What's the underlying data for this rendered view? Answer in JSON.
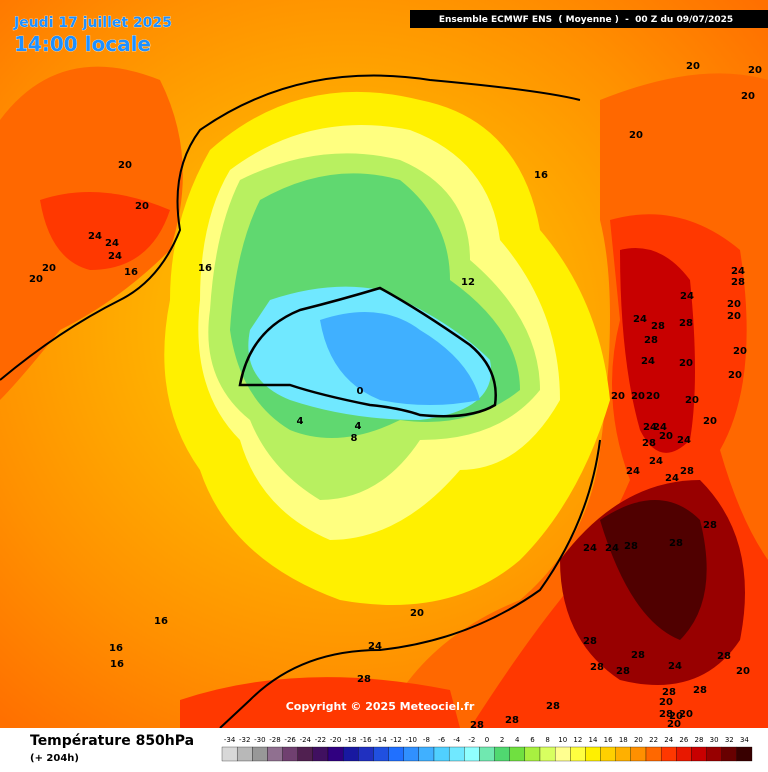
{
  "header": {
    "date": "Jeudi 17 juillet 2025",
    "time": "14:00 locale",
    "model": "Ensemble ECMWF ENS  ( Moyenne )  -  00 Z du 09/07/2025"
  },
  "copyright": "Copyright © 2025 Meteociel.fr",
  "footer": {
    "title": "Température 850hPa",
    "lead": "(+ 204h)"
  },
  "colorbar": {
    "ticks": [
      -34,
      -32,
      -30,
      -28,
      -26,
      -24,
      -22,
      -20,
      -18,
      -16,
      -14,
      -12,
      -10,
      -8,
      -6,
      -4,
      -2,
      0,
      2,
      4,
      6,
      8,
      10,
      12,
      14,
      16,
      18,
      20,
      22,
      24,
      26,
      28,
      30,
      32,
      34
    ],
    "colors": [
      "#d8d8d8",
      "#b8b8b8",
      "#989898",
      "#907090",
      "#704070",
      "#502050",
      "#401060",
      "#300080",
      "#1818a0",
      "#2030c0",
      "#2050e0",
      "#2070ff",
      "#3090ff",
      "#40b0ff",
      "#50d0ff",
      "#70e8ff",
      "#90ffff",
      "#70e8b0",
      "#50d870",
      "#70e040",
      "#a8f040",
      "#d8ff60",
      "#ffff90",
      "#ffff40",
      "#fff000",
      "#ffd000",
      "#ffb000",
      "#ff9000",
      "#ff6800",
      "#ff3800",
      "#e81800",
      "#c80000",
      "#980000",
      "#680000",
      "#380000"
    ]
  },
  "contour_labels": [
    20,
    20,
    20,
    20,
    20,
    20,
    16,
    24,
    24,
    24,
    20,
    16,
    20,
    16,
    12,
    24,
    28,
    24,
    20,
    20,
    24,
    28,
    28,
    28,
    20,
    24,
    20,
    20,
    20,
    20,
    20,
    20,
    20,
    4,
    4,
    8,
    0,
    24,
    24,
    20,
    24,
    28,
    24,
    24,
    28,
    24,
    28,
    24,
    24,
    28,
    28,
    20,
    16,
    16,
    16,
    24,
    28,
    28,
    28,
    28,
    24,
    28,
    20,
    28,
    28,
    28,
    20,
    28,
    28,
    28,
    28,
    20,
    20,
    20
  ]
}
